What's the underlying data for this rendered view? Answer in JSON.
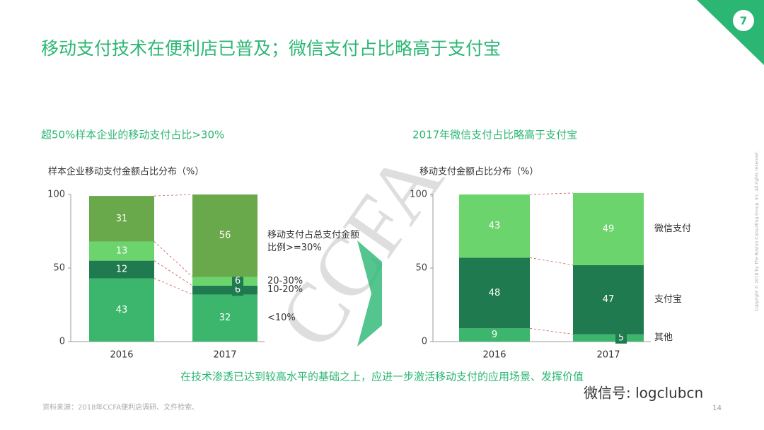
{
  "slide": {
    "page_badge": "7",
    "title": "移动支付技术在便利店已普及；微信支付占比略高于支付宝",
    "conclusion": "在技术渗透已达到较高水平的基础之上，应进一步激活移动支付的应用场景、发挥价值",
    "source": "资料来源：2018年CCFA便利店调研、文件检索、",
    "page_number": "14",
    "watermark": "CCFA",
    "wechat": "微信号: logclubcn",
    "copyright": "Copyright © 2018 by The Boston Consulting Group, Inc. All rights reserved."
  },
  "chart_data": [
    {
      "type": "bar",
      "stacked": true,
      "subtitle": "超50%样本企业的移动支付占比>30%",
      "title": "样本企业移动支付金额占比分布（%）",
      "categories": [
        "2016",
        "2017"
      ],
      "ylim": [
        0,
        100
      ],
      "yticks": [
        0,
        50,
        100
      ],
      "series": [
        {
          "name": "<10%",
          "color": "#3cb66c",
          "values": [
            43,
            32
          ]
        },
        {
          "name": "10-20%",
          "color": "#1f7a4f",
          "values": [
            12,
            6
          ]
        },
        {
          "name": "20-30%",
          "color": "#6bd46d",
          "values": [
            13,
            6
          ]
        },
        {
          "name": "移动支付占总支付金额比例>=30%",
          "color": "#6aa84c",
          "values": [
            31,
            56
          ]
        }
      ]
    },
    {
      "type": "bar",
      "stacked": true,
      "subtitle": "2017年微信支付占比略高于支付宝",
      "title": "移动支付金额占比分布（%）",
      "categories": [
        "2016",
        "2017"
      ],
      "ylim": [
        0,
        100
      ],
      "yticks": [
        0,
        50,
        100
      ],
      "series": [
        {
          "name": "其他",
          "color": "#3cb66c",
          "values": [
            9,
            5
          ]
        },
        {
          "name": "支付宝",
          "color": "#1f7a4f",
          "values": [
            48,
            47
          ]
        },
        {
          "name": "微信支付",
          "color": "#6bd46d",
          "values": [
            43,
            49
          ]
        }
      ]
    }
  ]
}
